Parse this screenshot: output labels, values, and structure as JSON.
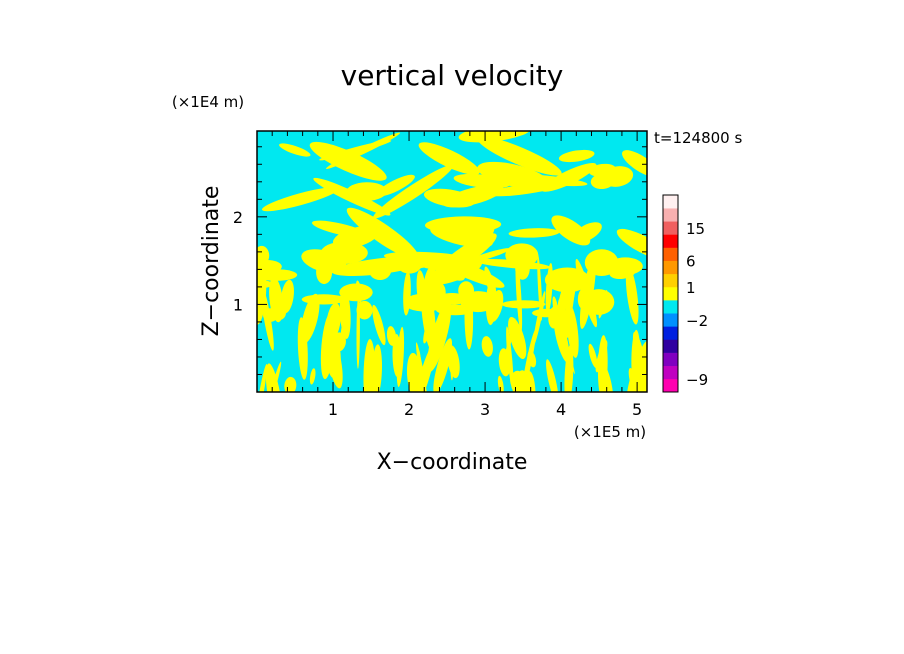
{
  "chart_data": {
    "type": "heatmap",
    "title": "vertical velocity",
    "xlabel": "X−coordinate",
    "ylabel": "Z−coordinate",
    "x_unit": "(×1E5 m)",
    "y_unit": "(×1E4 m)",
    "time_label": "t=124800 s",
    "xlim": [
      0,
      5.13
    ],
    "ylim": [
      0,
      2.98
    ],
    "x_ticks": [
      {
        "value": 1,
        "label": "1"
      },
      {
        "value": 2,
        "label": "2"
      },
      {
        "value": 3,
        "label": "3"
      },
      {
        "value": 4,
        "label": "4"
      },
      {
        "value": 5,
        "label": "5"
      }
    ],
    "y_ticks": [
      {
        "value": 1,
        "label": "1"
      },
      {
        "value": 2,
        "label": "2"
      }
    ],
    "field_colors": {
      "positive": "#ffff00",
      "negative": "#00e8f0"
    },
    "colorbar": {
      "levels": [
        {
          "color": "#ff00b0"
        },
        {
          "color": "#c000c0"
        },
        {
          "color": "#8000c0"
        },
        {
          "color": "#3000a0"
        },
        {
          "color": "#0020e0"
        },
        {
          "color": "#0090ff"
        },
        {
          "color": "#00e8f0"
        },
        {
          "color": "#ffff00"
        },
        {
          "color": "#ffd000"
        },
        {
          "color": "#ff9800"
        },
        {
          "color": "#ff6000"
        },
        {
          "color": "#ff0000"
        },
        {
          "color": "#f06060"
        },
        {
          "color": "#f8b0b0"
        },
        {
          "color": "#fff0f0"
        }
      ],
      "labels": [
        {
          "text": "−9",
          "at": 1
        },
        {
          "text": "−2",
          "at": 5.5
        },
        {
          "text": "1",
          "at": 8
        },
        {
          "text": "6",
          "at": 10
        },
        {
          "text": "15",
          "at": 12.5
        }
      ]
    }
  }
}
